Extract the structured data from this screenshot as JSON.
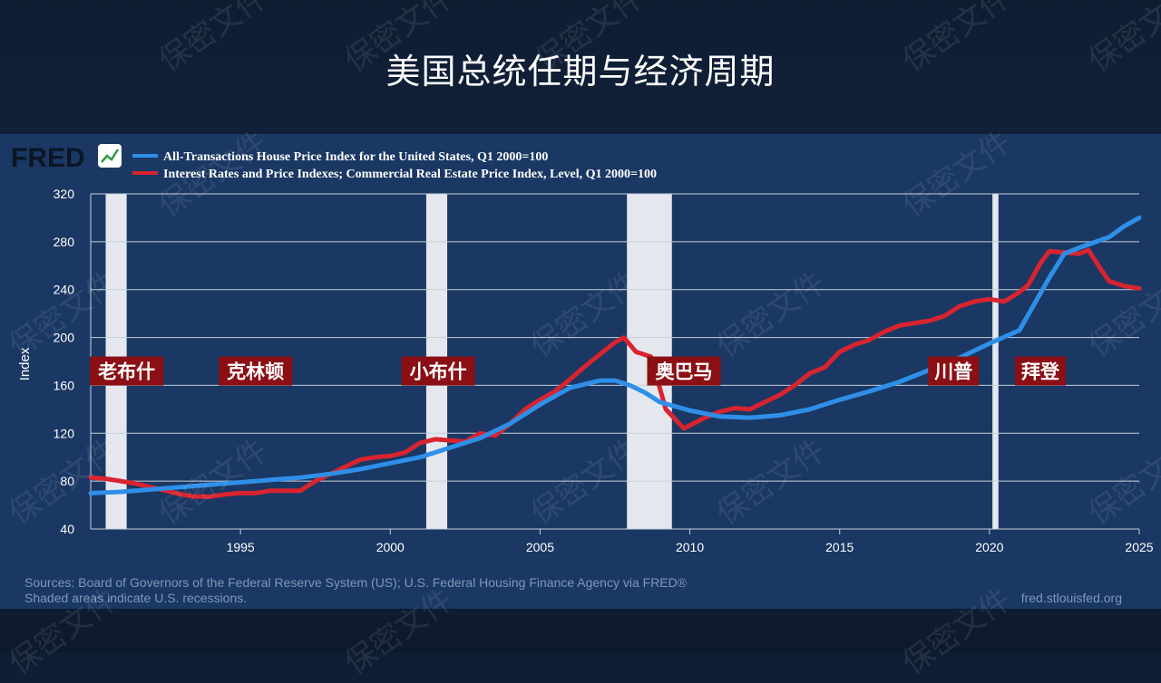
{
  "slide_title": "美国总统任期与经济周期",
  "watermark_text": "保密文件",
  "logo": {
    "text": "FRED",
    "icon": "chart-line-icon"
  },
  "chart_data": {
    "type": "line",
    "title": "",
    "xlabel": "",
    "ylabel": "Index",
    "xlim": [
      1990,
      2025
    ],
    "ylim": [
      40,
      320
    ],
    "y_ticks": [
      40,
      80,
      120,
      160,
      200,
      240,
      280,
      320
    ],
    "x_ticks": [
      1995,
      2000,
      2005,
      2010,
      2015,
      2020,
      2025
    ],
    "grid": true,
    "legend_position": "top-left",
    "series": [
      {
        "name": "All-Transactions House Price Index for the United States, Q1 2000=100",
        "color": "#2f8fe8",
        "x": [
          1990,
          1991,
          1992,
          1993,
          1994,
          1995,
          1996,
          1997,
          1998,
          1999,
          2000,
          2001,
          2002,
          2003,
          2004,
          2005,
          2006,
          2007,
          2007.5,
          2008,
          2008.5,
          2009,
          2010,
          2011,
          2012,
          2013,
          2014,
          2015,
          2016,
          2017,
          2018,
          2019,
          2020,
          2021,
          2022,
          2022.5,
          2023,
          2024,
          2024.5,
          2025
        ],
        "y": [
          70,
          71,
          73,
          75,
          77,
          79,
          81,
          83,
          86,
          90,
          95,
          100,
          108,
          116,
          128,
          144,
          158,
          164,
          164,
          160,
          154,
          146,
          139,
          134,
          133,
          135,
          140,
          148,
          155,
          163,
          173,
          183,
          195,
          206,
          250,
          270,
          275,
          284,
          293,
          300
        ]
      },
      {
        "name": "Interest Rates and Price Indexes; Commercial Real Estate Price Index, Level, Q1 2000=100",
        "color": "#d8242f",
        "x": [
          1990,
          1990.5,
          1991,
          1991.5,
          1992,
          1992.5,
          1993,
          1993.5,
          1994,
          1994.5,
          1995,
          1995.5,
          1996,
          1996.5,
          1997,
          1997.5,
          1998,
          1998.5,
          1999,
          1999.5,
          2000,
          2000.5,
          2001,
          2001.5,
          2002,
          2002.5,
          2003,
          2003.5,
          2004,
          2004.5,
          2005,
          2005.5,
          2006,
          2006.5,
          2007,
          2007.5,
          2007.8,
          2008.2,
          2008.7,
          2009.2,
          2009.8,
          2010.5,
          2011,
          2011.5,
          2012,
          2012.5,
          2013,
          2013.5,
          2014,
          2014.5,
          2015,
          2015.5,
          2016,
          2016.5,
          2017,
          2017.5,
          2018,
          2018.5,
          2019,
          2019.5,
          2020,
          2020.5,
          2021,
          2021.3,
          2021.7,
          2022,
          2022.5,
          2023,
          2023.3,
          2023.8,
          2024,
          2024.5,
          2025
        ],
        "y": [
          83,
          82,
          80,
          78,
          75,
          72,
          69,
          67,
          67,
          69,
          70,
          70,
          72,
          72,
          72,
          80,
          86,
          92,
          98,
          100,
          101,
          104,
          112,
          115,
          114,
          113,
          120,
          118,
          128,
          140,
          148,
          155,
          165,
          176,
          186,
          196,
          200,
          188,
          184,
          140,
          124,
          133,
          138,
          141,
          140,
          146,
          152,
          160,
          170,
          175,
          188,
          194,
          198,
          205,
          210,
          212,
          214,
          218,
          226,
          230,
          232,
          230,
          238,
          244,
          262,
          272,
          271,
          270,
          273,
          254,
          247,
          243,
          241
        ]
      }
    ],
    "recessions": [
      [
        1990.5,
        1991.2
      ],
      [
        2001.2,
        2001.9
      ],
      [
        2007.9,
        2009.4
      ],
      [
        2020.1,
        2020.3
      ]
    ],
    "annotations": [
      {
        "text": "老布什",
        "x": 1991.2,
        "y": 172
      },
      {
        "text": "克林顿",
        "x": 1995.5,
        "y": 172
      },
      {
        "text": "小布什",
        "x": 2001.6,
        "y": 172
      },
      {
        "text": "奥巴马",
        "x": 2009.8,
        "y": 172
      },
      {
        "text": "川普",
        "x": 2018.8,
        "y": 172
      },
      {
        "text": "拜登",
        "x": 2021.7,
        "y": 172
      }
    ]
  },
  "footer": {
    "sources": "Sources: Board of Governors of the Federal Reserve System (US); U.S. Federal Housing Finance Agency via FRED®",
    "note": "Shaded areas indicate U.S. recessions.",
    "site": "fred.stlouisfed.org"
  }
}
